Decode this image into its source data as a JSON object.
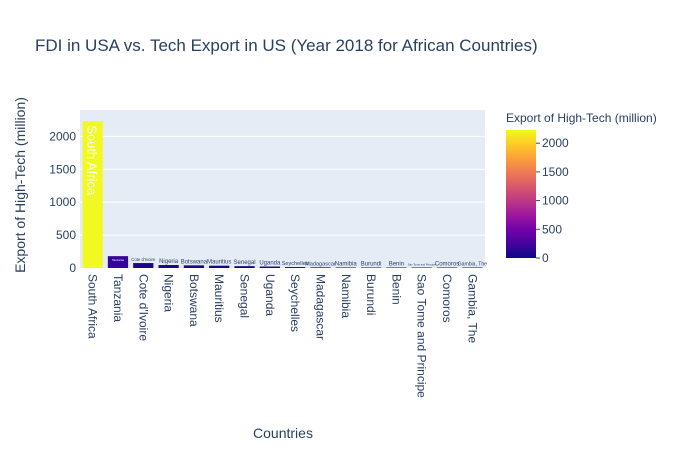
{
  "chart_data": {
    "type": "bar",
    "title": "FDI in USA vs. Tech Export in US (Year 2018 for African Countries)",
    "xlabel": "Countries",
    "ylabel": "Export of High-Tech (million)",
    "ylim": [
      0,
      2400
    ],
    "yticks": [
      0,
      500,
      1000,
      1500,
      2000
    ],
    "grid": true,
    "categories": [
      "South Africa",
      "Tanzania",
      "Cote d'Ivoire",
      "Nigeria",
      "Botswana",
      "Mauritius",
      "Senegal",
      "Uganda",
      "Seychelles",
      "Madagascar",
      "Namibia",
      "Burundi",
      "Benin",
      "Sao Tome and Principe",
      "Comoros",
      "Gambia, The"
    ],
    "values": [
      2230,
      180,
      75,
      45,
      40,
      35,
      28,
      22,
      14,
      10,
      8,
      6,
      5,
      3,
      1,
      0.5
    ],
    "bar_text": [
      "South Africa",
      "Tanzania",
      "Cote d'Ivoire",
      "Nigeria",
      "Botswana",
      "Mauritius",
      "Senegal",
      "Uganda",
      "Seychelles",
      "Madagascar",
      "Namibia",
      "Burundi",
      "Benin",
      "Sao Tome and Principe",
      "Comoros",
      "Gambia, The"
    ],
    "colorbar": {
      "title": "Export of High-Tech (million)",
      "min": 0,
      "max": 2230,
      "ticks": [
        0,
        500,
        1000,
        1500,
        2000
      ],
      "colorscale": [
        "#0d0887",
        "#46039f",
        "#7201a8",
        "#9c179e",
        "#bd3786",
        "#d8576b",
        "#ed7953",
        "#fb9f3a",
        "#fdca26",
        "#f0f921"
      ]
    }
  }
}
